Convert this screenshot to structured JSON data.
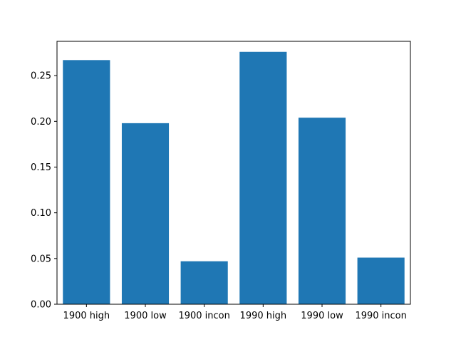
{
  "chart_data": {
    "type": "bar",
    "categories": [
      "1900 high",
      "1900 low",
      "1900 incon",
      "1990 high",
      "1990 low",
      "1990 incon"
    ],
    "values": [
      0.267,
      0.198,
      0.047,
      0.276,
      0.204,
      0.051
    ],
    "ylim": [
      0,
      0.2875
    ],
    "yticks": [
      "0.00",
      "0.05",
      "0.10",
      "0.15",
      "0.20",
      "0.25"
    ],
    "title": "",
    "xlabel": "",
    "ylabel": "",
    "grid": false,
    "bar_color": "#1f77b4"
  }
}
